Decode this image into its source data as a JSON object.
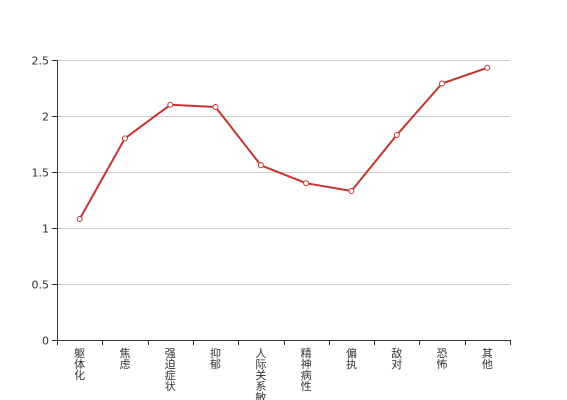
{
  "chart_data": {
    "type": "line",
    "categories": [
      "躯体化",
      "焦虑",
      "强迫症状",
      "抑郁",
      "人际关系敏感",
      "精神病性",
      "偏执",
      "敌对",
      "恐怖",
      "其他"
    ],
    "values": [
      1.08,
      1.8,
      2.1,
      2.08,
      1.56,
      1.4,
      1.33,
      1.83,
      2.29,
      2.43
    ],
    "ylim": [
      0,
      2.5
    ],
    "yticks": [
      "0",
      "0.5",
      "1",
      "1.5",
      "2",
      "2.5"
    ],
    "grid": true,
    "line_color": "#c23531",
    "marker_fill": "#ffffff"
  }
}
